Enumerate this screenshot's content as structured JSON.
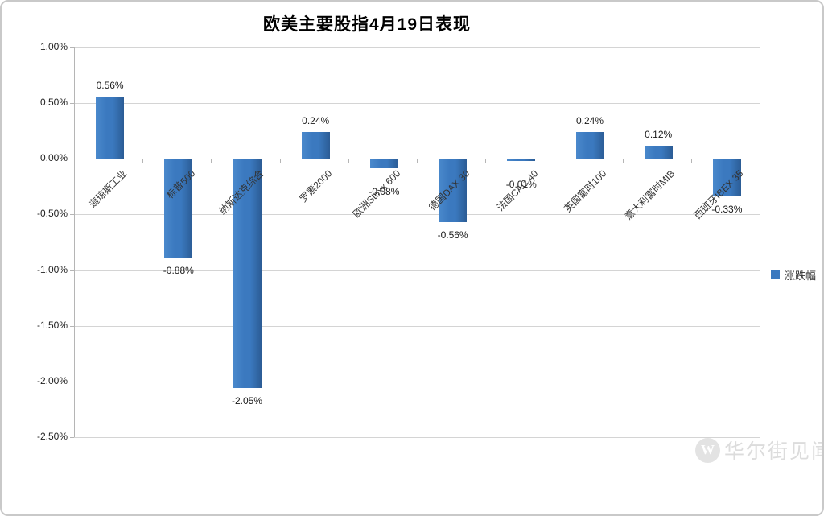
{
  "chart_data": {
    "type": "bar",
    "title": "欧美主要股指4月19日表现",
    "categories": [
      "道琼斯工业",
      "标普500",
      "纳斯达克综合",
      "罗素2000",
      "欧洲Stoxx 600",
      "德国DAX 30",
      "法国CAC 40",
      "英国富时100",
      "意大利富时MIB",
      "西班牙IBEX 35"
    ],
    "values": [
      0.56,
      -0.88,
      -2.05,
      0.24,
      -0.08,
      -0.56,
      -0.01,
      0.24,
      0.12,
      -0.33
    ],
    "data_labels": [
      "0.56%",
      "-0.88%",
      "-2.05%",
      "0.24%",
      "-0.08%",
      "-0.56%",
      "-0.01%",
      "0.24%",
      "0.12%",
      "-0.33%"
    ],
    "series_name": "涨跌幅",
    "xlabel": "",
    "ylabel": "",
    "ylim": [
      -2.5,
      1.0
    ],
    "yticks": [
      1.0,
      0.5,
      0.0,
      -0.5,
      -1.0,
      -1.5,
      -2.0,
      -2.5
    ],
    "ytick_labels": [
      "1.00%",
      "0.50%",
      "0.00%",
      "-0.50%",
      "-1.00%",
      "-1.50%",
      "-2.00%",
      "-2.50%"
    ],
    "grid": true,
    "legend_position": "right",
    "bar_color": "#3b79bf",
    "grid_color": "#d4d4d4",
    "axis_color": "#b5b5b5"
  },
  "legend": {
    "label": "涨跌幅"
  },
  "watermark": {
    "logo_letter": "W",
    "text": "华尔街见闻"
  }
}
